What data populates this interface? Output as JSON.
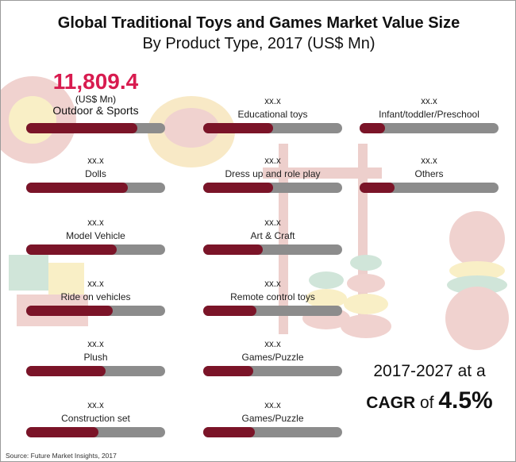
{
  "title": "Global Traditional Toys and Games Market Value Size",
  "subtitle": "By Product Type, 2017 (US$ Mn)",
  "highlight": {
    "value": "11,809.4",
    "unit": "(US$ Mn)"
  },
  "chart_data": {
    "type": "bar",
    "orientation": "horizontal",
    "title": "Global Traditional Toys and Games Market Value Size",
    "subtitle": "By Product Type, 2017 (US$ Mn)",
    "xlim": [
      0,
      1
    ],
    "items": [
      {
        "label": "Outdoor & Sports",
        "value_text": "11,809.4",
        "fill": 0.8
      },
      {
        "label": "Educational toys",
        "value_text": "xx.x",
        "fill": 0.5
      },
      {
        "label": "Infant/toddler/Preschool",
        "value_text": "xx.x",
        "fill": 0.18
      },
      {
        "label": "Dolls",
        "value_text": "xx.x",
        "fill": 0.73
      },
      {
        "label": "Dress up and role play",
        "value_text": "xx.x",
        "fill": 0.5
      },
      {
        "label": "Others",
        "value_text": "xx.x",
        "fill": 0.25
      },
      {
        "label": "Model Vehicle",
        "value_text": "xx.x",
        "fill": 0.65
      },
      {
        "label": "Art & Craft",
        "value_text": "xx.x",
        "fill": 0.43
      },
      {
        "label": "Ride on vehicles",
        "value_text": "xx.x",
        "fill": 0.62
      },
      {
        "label": "Remote control toys",
        "value_text": "xx.x",
        "fill": 0.38
      },
      {
        "label": "Plush",
        "value_text": "xx.x",
        "fill": 0.57
      },
      {
        "label": "Games/Puzzle",
        "value_text": "xx.x",
        "fill": 0.36
      },
      {
        "label": "Construction set",
        "value_text": "xx.x",
        "fill": 0.52
      },
      {
        "label": "Games/Puzzle",
        "value_text": "xx.x",
        "fill": 0.37
      }
    ],
    "colors": {
      "fill": "#7b1428",
      "track": "#8c8c8c",
      "highlight": "#d81b4f"
    }
  },
  "cagr": {
    "line1": "2017-2027 at a",
    "prefix": "CAGR",
    "mid": "of",
    "value": "4.5%"
  },
  "source": "Source: Future Market Insights, 2017"
}
